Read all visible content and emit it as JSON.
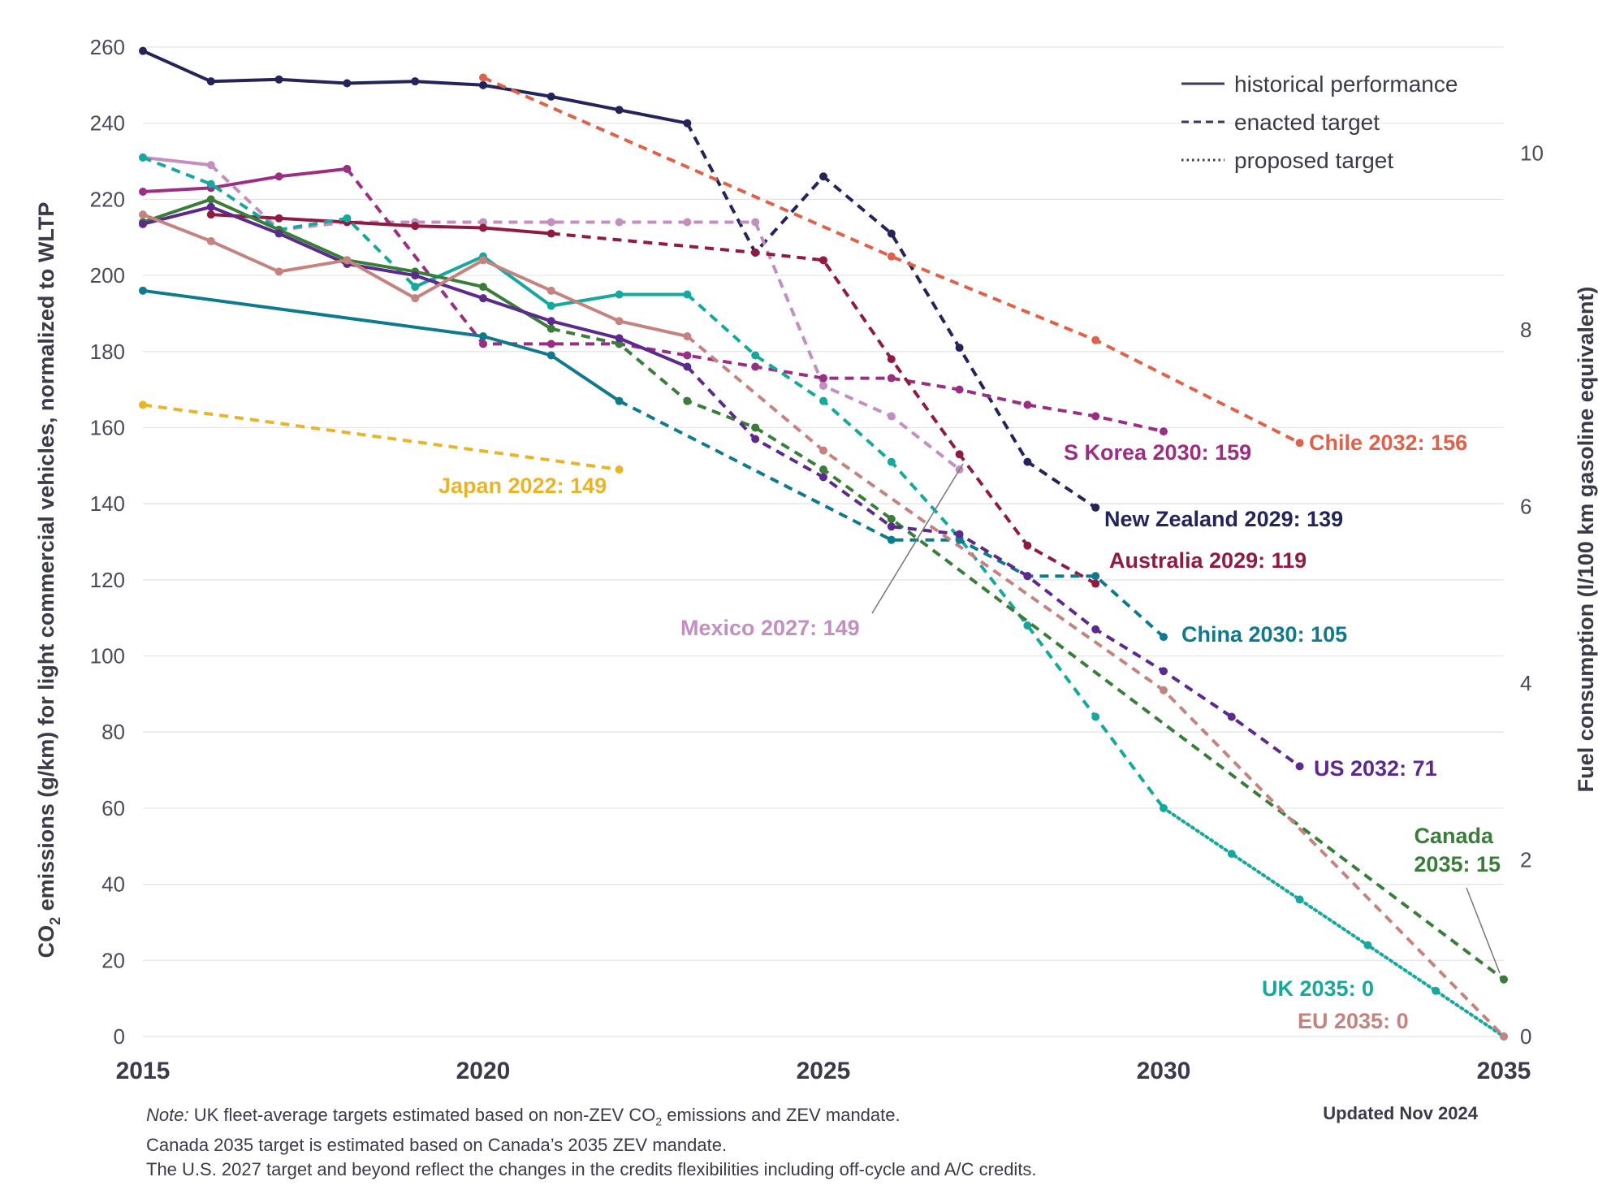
{
  "chart_data": {
    "type": "line",
    "title": "",
    "xlabel": "",
    "ylabel": "CO2 emissions (g/km) for light commercial vehicles, normalized to WLTP",
    "ylabel_parts": [
      "CO",
      "2",
      " emissions (g/km) for light commercial vehicles, normalized to WLTP"
    ],
    "y2label": "Fuel consumption (l/100 km gasoline equivalent)",
    "xlim": [
      2015,
      2035
    ],
    "ylim": [
      0,
      260
    ],
    "y2lim": [
      0,
      11.2
    ],
    "x_ticks": [
      2015,
      2020,
      2025,
      2030,
      2035
    ],
    "y_ticks": [
      0,
      20,
      40,
      60,
      80,
      100,
      120,
      140,
      160,
      180,
      200,
      220,
      240,
      260
    ],
    "y2_ticks": [
      0,
      2,
      4,
      6,
      8,
      10
    ],
    "grid": "horizontal",
    "legend": {
      "position": "top-right",
      "entries": [
        {
          "style": "solid",
          "label": "historical performance"
        },
        {
          "style": "dashed",
          "label": "enacted target"
        },
        {
          "style": "dotted",
          "label": "proposed target"
        }
      ]
    },
    "series": [
      {
        "name": "New Zealand",
        "label": "New Zealand 2029: 139",
        "color": "#232459",
        "segments": [
          {
            "style": "solid",
            "points": [
              [
                2015,
                259
              ],
              [
                2016,
                251
              ],
              [
                2017,
                251.5
              ],
              [
                2018,
                250.5
              ],
              [
                2019,
                251
              ],
              [
                2020,
                250
              ],
              [
                2021,
                247
              ],
              [
                2022,
                243.5
              ],
              [
                2023,
                240
              ]
            ]
          },
          {
            "style": "dashed",
            "points": [
              [
                2023,
                240
              ],
              [
                2024,
                206
              ],
              [
                2025,
                226
              ],
              [
                2026,
                211
              ],
              [
                2027,
                181
              ],
              [
                2028,
                151
              ],
              [
                2029,
                139
              ]
            ]
          }
        ]
      },
      {
        "name": "Chile",
        "label": "Chile 2032: 156",
        "color": "#e0604a",
        "segments": [
          {
            "style": "dashed",
            "points": [
              [
                2020,
                252
              ],
              [
                2026,
                205
              ],
              [
                2029,
                183
              ],
              [
                2032,
                156
              ]
            ]
          }
        ]
      },
      {
        "name": "Mexico",
        "label": "Mexico 2027: 149",
        "color": "#c28fc0",
        "segments": [
          {
            "style": "solid",
            "points": [
              [
                2015,
                231
              ],
              [
                2016,
                229
              ]
            ]
          },
          {
            "style": "dashed",
            "points": [
              [
                2016,
                229
              ],
              [
                2017,
                212
              ],
              [
                2018,
                214
              ],
              [
                2019,
                214
              ],
              [
                2020,
                214
              ],
              [
                2021,
                214
              ],
              [
                2022,
                214
              ],
              [
                2023,
                214
              ],
              [
                2024,
                214
              ],
              [
                2025,
                171
              ],
              [
                2026,
                163
              ],
              [
                2027,
                149
              ]
            ]
          }
        ]
      },
      {
        "name": "S Korea",
        "label": "S Korea 2030: 159",
        "color": "#9b2e82",
        "segments": [
          {
            "style": "solid",
            "points": [
              [
                2015,
                222
              ],
              [
                2016,
                223
              ],
              [
                2017,
                226
              ],
              [
                2018,
                228
              ]
            ]
          },
          {
            "style": "dashed",
            "points": [
              [
                2018,
                228
              ],
              [
                2020,
                182
              ],
              [
                2021,
                182
              ],
              [
                2022,
                182
              ],
              [
                2023,
                179
              ],
              [
                2024,
                176
              ],
              [
                2025,
                173
              ],
              [
                2026,
                173
              ],
              [
                2027,
                170
              ],
              [
                2028,
                166
              ],
              [
                2029,
                163
              ],
              [
                2030,
                159
              ]
            ]
          }
        ]
      },
      {
        "name": "Australia",
        "label": "Australia 2029: 119",
        "color": "#8f1b43",
        "segments": [
          {
            "style": "solid",
            "points": [
              [
                2016,
                216
              ],
              [
                2017,
                215
              ],
              [
                2018,
                214
              ],
              [
                2019,
                213
              ],
              [
                2020,
                212.5
              ],
              [
                2021,
                211
              ]
            ]
          },
          {
            "style": "dashed",
            "points": [
              [
                2021,
                211
              ],
              [
                2024,
                206
              ],
              [
                2025,
                204
              ],
              [
                2026,
                178
              ],
              [
                2027,
                153
              ],
              [
                2028,
                129
              ],
              [
                2029,
                119
              ]
            ]
          }
        ]
      },
      {
        "name": "UK",
        "label": "UK 2035: 0",
        "color": "#16a89d",
        "segments": [
          {
            "style": "dashed",
            "points": [
              [
                2015,
                231
              ],
              [
                2016,
                224
              ],
              [
                2017,
                212
              ],
              [
                2018,
                215
              ],
              [
                2019,
                197
              ]
            ]
          },
          {
            "style": "solid",
            "points": [
              [
                2019,
                197
              ],
              [
                2020,
                205
              ],
              [
                2021,
                192
              ],
              [
                2022,
                195
              ],
              [
                2023,
                195
              ]
            ]
          },
          {
            "style": "dashed",
            "points": [
              [
                2023,
                195
              ],
              [
                2024,
                179
              ],
              [
                2025,
                167
              ],
              [
                2026,
                151
              ],
              [
                2027,
                131
              ],
              [
                2028,
                108
              ],
              [
                2029,
                84
              ],
              [
                2030,
                60
              ]
            ]
          },
          {
            "style": "dotted",
            "points": [
              [
                2030,
                60
              ],
              [
                2031,
                48
              ],
              [
                2032,
                36
              ],
              [
                2033,
                24
              ],
              [
                2034,
                12
              ],
              [
                2035,
                0
              ]
            ]
          }
        ]
      },
      {
        "name": "China",
        "label": "China 2030: 105",
        "color": "#0f7a8e",
        "segments": [
          {
            "style": "solid",
            "points": [
              [
                2015,
                196
              ],
              [
                2020,
                184
              ],
              [
                2021,
                179
              ],
              [
                2022,
                167
              ]
            ]
          },
          {
            "style": "dashed",
            "points": [
              [
                2022,
                167
              ],
              [
                2026,
                130.5
              ],
              [
                2027,
                130.5
              ],
              [
                2028,
                121
              ],
              [
                2029,
                121
              ],
              [
                2030,
                105
              ]
            ]
          }
        ]
      },
      {
        "name": "Canada",
        "label": "Canada 2035: 15",
        "label_lines": [
          "Canada",
          "2035: 15"
        ],
        "color": "#3a7d3a",
        "segments": [
          {
            "style": "solid",
            "points": [
              [
                2015,
                214
              ],
              [
                2016,
                220
              ],
              [
                2017,
                212
              ],
              [
                2018,
                204
              ],
              [
                2019,
                201
              ],
              [
                2020,
                197
              ],
              [
                2021,
                186
              ]
            ]
          },
          {
            "style": "dashed",
            "points": [
              [
                2021,
                186
              ],
              [
                2022,
                182
              ],
              [
                2023,
                167
              ],
              [
                2024,
                160
              ],
              [
                2025,
                149
              ],
              [
                2026,
                136
              ],
              [
                2035,
                15
              ]
            ]
          }
        ]
      },
      {
        "name": "US",
        "label": "US 2032: 71",
        "color": "#5b2a8c",
        "segments": [
          {
            "style": "solid",
            "points": [
              [
                2015,
                213.5
              ],
              [
                2016,
                218
              ],
              [
                2017,
                211
              ],
              [
                2018,
                203
              ],
              [
                2019,
                200
              ],
              [
                2020,
                194
              ],
              [
                2021,
                188
              ],
              [
                2022,
                183.5
              ],
              [
                2023,
                176
              ]
            ]
          },
          {
            "style": "dashed",
            "points": [
              [
                2023,
                176
              ],
              [
                2024,
                157
              ],
              [
                2025,
                147
              ],
              [
                2026,
                134
              ],
              [
                2027,
                132
              ],
              [
                2028,
                121
              ],
              [
                2029,
                107
              ],
              [
                2030,
                96
              ],
              [
                2031,
                84
              ],
              [
                2032,
                71
              ]
            ]
          }
        ]
      },
      {
        "name": "EU",
        "label": "EU 2035: 0",
        "color": "#c4837e",
        "segments": [
          {
            "style": "solid",
            "points": [
              [
                2015,
                216
              ],
              [
                2016,
                209
              ],
              [
                2017,
                201
              ],
              [
                2018,
                204
              ],
              [
                2019,
                194
              ],
              [
                2020,
                204
              ],
              [
                2021,
                196
              ],
              [
                2022,
                188
              ],
              [
                2023,
                184
              ]
            ]
          },
          {
            "style": "dashed",
            "points": [
              [
                2023,
                184
              ],
              [
                2025,
                154
              ],
              [
                2030,
                91
              ],
              [
                2035,
                0
              ]
            ]
          }
        ]
      },
      {
        "name": "Japan",
        "label": "Japan 2022: 149",
        "color": "#e8b42a",
        "segments": [
          {
            "style": "dashed",
            "points": [
              [
                2015,
                166
              ],
              [
                2022,
                149
              ]
            ]
          }
        ]
      }
    ]
  },
  "notes": {
    "line1_prefix": "Note:",
    "line1_part1": " UK fleet-average targets estimated based on non-ZEV CO",
    "line1_sub": "2",
    "line1_part2": " emissions and ZEV mandate.",
    "line2": "Canada 2035 target is estimated based on Canada’s 2035 ZEV mandate.",
    "line3": "The U.S. 2027 target and beyond reflect the changes in the credits flexibilities including off-cycle and A/C credits."
  },
  "updated": "Updated Nov 2024"
}
